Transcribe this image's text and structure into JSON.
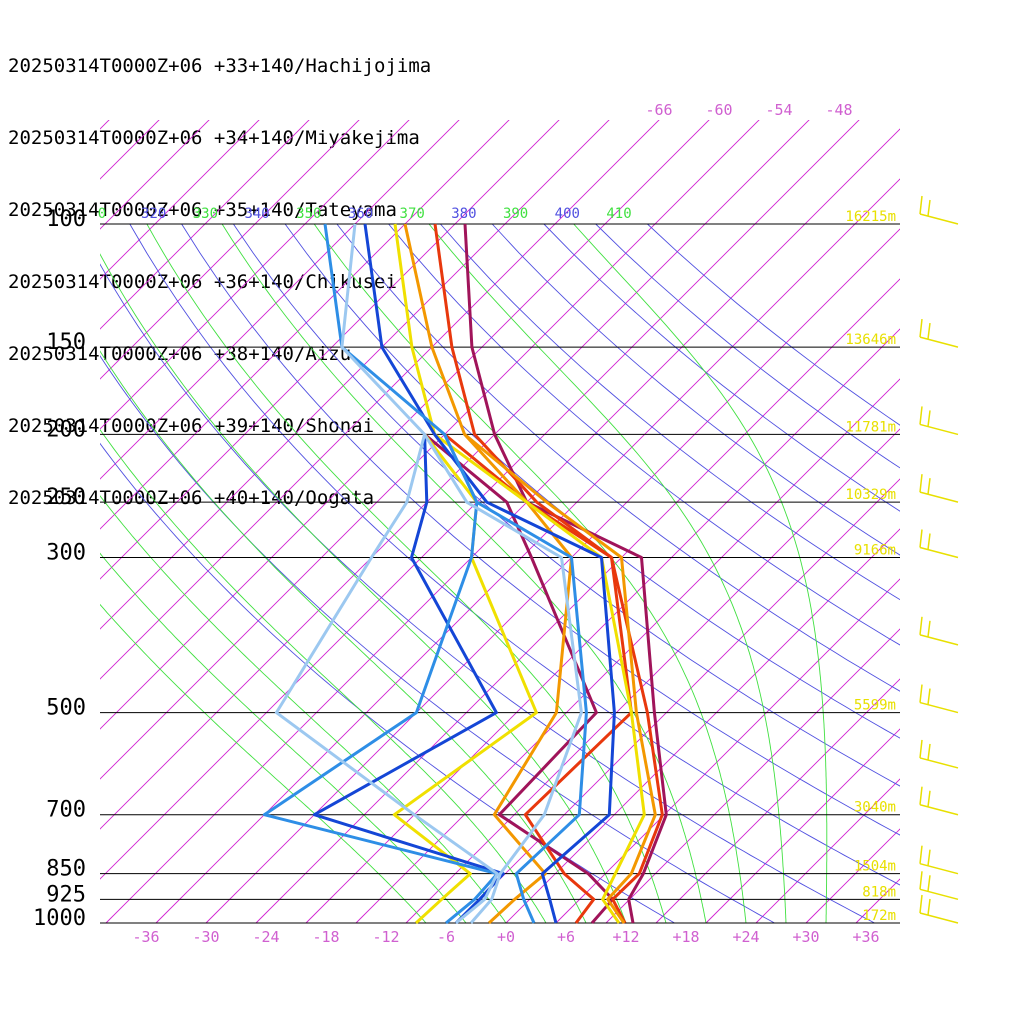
{
  "chart_data": {
    "type": "line",
    "subtype": "skew-T log-P sounding",
    "legend": [
      {
        "label": "20250314T0000Z+06 +33+140/Hachijojima",
        "color": "#a0145a"
      },
      {
        "label": "20250314T0000Z+06 +34+140/Miyakejima",
        "color": "#e8380d"
      },
      {
        "label": "20250314T0000Z+06 +35+140/Tateyama",
        "color": "#f39800"
      },
      {
        "label": "20250314T0000Z+06 +36+140/Chikusei",
        "color": "#f0e000"
      },
      {
        "label": "20250314T0000Z+06 +38+140/Aizu",
        "color": "#1446d6"
      },
      {
        "label": "20250314T0000Z+06 +39+140/Shonai",
        "color": "#2e8ee6"
      },
      {
        "label": "20250314T0000Z+06 +40+140/Oogata",
        "color": "#9cc8f0"
      }
    ],
    "pressure_levels": [
      {
        "label": "100",
        "p": 100,
        "height": "16215m"
      },
      {
        "label": "150",
        "p": 150,
        "height": "13646m"
      },
      {
        "label": "200",
        "p": 200,
        "height": "11781m"
      },
      {
        "label": "250",
        "p": 250,
        "height": "10329m"
      },
      {
        "label": "300",
        "p": 300,
        "height": "9166m"
      },
      {
        "label": "500",
        "p": 500,
        "height": "5599m"
      },
      {
        "label": "700",
        "p": 700,
        "height": "3040m"
      },
      {
        "label": "850",
        "p": 850,
        "height": "1504m"
      },
      {
        "label": "925",
        "p": 925,
        "height": "818m"
      },
      {
        "label": "1000",
        "p": 1000,
        "height": "172m"
      }
    ],
    "temperature_ticks": [
      "-36",
      "-30",
      "-24",
      "-18",
      "-12",
      "-6",
      "+0",
      "+6",
      "+12",
      "+18",
      "+24",
      "+30",
      "+36"
    ],
    "isotherm_labels_top": [
      "-66",
      "-60",
      "-54",
      "-48"
    ],
    "theta_labels": [
      {
        "text": "0",
        "color": "#40e040"
      },
      {
        "text": "320",
        "color": "#5050e0"
      },
      {
        "text": "330",
        "color": "#40e040"
      },
      {
        "text": "340",
        "color": "#5050e0"
      },
      {
        "text": "350",
        "color": "#40e040"
      },
      {
        "text": "360",
        "color": "#5050e0"
      },
      {
        "text": "370",
        "color": "#40e040"
      },
      {
        "text": "380",
        "color": "#5050e0"
      },
      {
        "text": "390",
        "color": "#40e040"
      },
      {
        "text": "400",
        "color": "#5050e0"
      },
      {
        "text": "410",
        "color": "#40e040"
      }
    ],
    "colors": {
      "isobar": "#000000",
      "isotherm": "#d21ed2",
      "dry_adiabat": "#5050e0",
      "moist_adiabat": "#40e040",
      "height_label": "#e8e000",
      "wind_barb": "#e8e000",
      "tick_label": "#d060d0",
      "pressure_label": "#000000"
    },
    "temperature_range": [
      -40,
      40
    ],
    "pressure_range": [
      100,
      1000
    ],
    "series": [
      {
        "name": "20250314T0000Z+06 +33+140/Hachijojima",
        "kind": "temperature",
        "points": [
          [
            1000,
            12.7
          ],
          [
            925,
            9.9
          ],
          [
            850,
            8.8
          ],
          [
            700,
            5.2
          ],
          [
            500,
            -6.2
          ],
          [
            300,
            -23
          ],
          [
            250,
            -40
          ],
          [
            200,
            -50
          ],
          [
            150,
            -61
          ],
          [
            100,
            -74
          ]
        ]
      },
      {
        "name": "20250314T0000Z+06 +33+140/Hachijojima",
        "kind": "dewpoint",
        "points": [
          [
            1000,
            8.6
          ],
          [
            925,
            8.3
          ],
          [
            850,
            3.3
          ],
          [
            700,
            -11.5
          ],
          [
            500,
            -12
          ],
          [
            300,
            -34
          ],
          [
            250,
            -42
          ],
          [
            200,
            -57
          ]
        ]
      },
      {
        "name": "20250314T0000Z+06 +34+140/Miyakejima",
        "kind": "temperature",
        "points": [
          [
            1000,
            11.9
          ],
          [
            925,
            8.3
          ],
          [
            850,
            8.4
          ],
          [
            700,
            4.8
          ],
          [
            500,
            -6.9
          ],
          [
            300,
            -26
          ],
          [
            250,
            -39
          ],
          [
            200,
            -52
          ],
          [
            150,
            -63
          ],
          [
            100,
            -77
          ]
        ]
      },
      {
        "name": "20250314T0000Z+06 +34+140/Miyakejima",
        "kind": "dewpoint",
        "points": [
          [
            1000,
            7.0
          ],
          [
            925,
            6.4
          ],
          [
            850,
            0.9
          ],
          [
            700,
            -8.9
          ],
          [
            500,
            -8.5
          ],
          [
            300,
            -26
          ],
          [
            250,
            -40
          ],
          [
            200,
            -55
          ]
        ]
      },
      {
        "name": "20250314T0000Z+06 +35+140/Tateyama",
        "kind": "temperature",
        "points": [
          [
            1000,
            11.8
          ],
          [
            925,
            7.8
          ],
          [
            850,
            7.6
          ],
          [
            700,
            4.1
          ],
          [
            500,
            -8.0
          ],
          [
            300,
            -25
          ],
          [
            250,
            -38
          ],
          [
            200,
            -53
          ],
          [
            150,
            -65
          ],
          [
            100,
            -80
          ]
        ]
      },
      {
        "name": "20250314T0000Z+06 +35+140/Tateyama",
        "kind": "dewpoint",
        "points": [
          [
            1000,
            -1.7
          ],
          [
            925,
            -1.5
          ],
          [
            850,
            -1.0
          ],
          [
            700,
            -12
          ],
          [
            500,
            -16
          ],
          [
            300,
            -30
          ],
          [
            250,
            -40
          ],
          [
            200,
            -53
          ]
        ]
      },
      {
        "name": "20250314T0000Z+06 +36+140/Chikusei",
        "kind": "temperature",
        "points": [
          [
            1000,
            11.3
          ],
          [
            925,
            7.3
          ],
          [
            850,
            6.0
          ],
          [
            700,
            3.0
          ],
          [
            500,
            -8.5
          ],
          [
            300,
            -27
          ],
          [
            250,
            -40
          ],
          [
            200,
            -56
          ],
          [
            150,
            -67
          ],
          [
            100,
            -81
          ]
        ]
      },
      {
        "name": "20250314T0000Z+06 +36+140/Chikusei",
        "kind": "dewpoint",
        "points": [
          [
            1000,
            -9
          ],
          [
            925,
            -8.8
          ],
          [
            850,
            -8.5
          ],
          [
            700,
            -22
          ],
          [
            500,
            -18
          ],
          [
            300,
            -40
          ],
          [
            250,
            -45
          ],
          [
            200,
            -57
          ]
        ]
      },
      {
        "name": "20250314T0000Z+06 +38+140/Aizu",
        "kind": "temperature",
        "points": [
          [
            1000,
            5.0
          ],
          [
            925,
            2.0
          ],
          [
            850,
            -1.3
          ],
          [
            700,
            -0.5
          ],
          [
            500,
            -10.2
          ],
          [
            300,
            -27
          ],
          [
            250,
            -44
          ],
          [
            200,
            -56
          ],
          [
            150,
            -70
          ],
          [
            100,
            -84
          ]
        ]
      },
      {
        "name": "20250314T0000Z+06 +38+140/Aizu",
        "kind": "dewpoint",
        "points": [
          [
            1000,
            -5
          ],
          [
            925,
            -5
          ],
          [
            850,
            -5.2
          ],
          [
            700,
            -30
          ],
          [
            500,
            -22
          ],
          [
            300,
            -46
          ],
          [
            250,
            -50
          ],
          [
            200,
            -57
          ]
        ]
      },
      {
        "name": "20250314T0000Z+06 +39+140/Shonai",
        "kind": "temperature",
        "points": [
          [
            1000,
            2.8
          ],
          [
            925,
            -0.6
          ],
          [
            850,
            -3.9
          ],
          [
            700,
            -3.5
          ],
          [
            500,
            -13
          ],
          [
            300,
            -30
          ],
          [
            250,
            -45
          ],
          [
            200,
            -55
          ],
          [
            150,
            -74
          ],
          [
            100,
            -88
          ]
        ]
      },
      {
        "name": "20250314T0000Z+06 +39+140/Shonai",
        "kind": "dewpoint",
        "points": [
          [
            1000,
            -6
          ],
          [
            925,
            -5.5
          ],
          [
            850,
            -5.8
          ],
          [
            700,
            -35
          ],
          [
            500,
            -30
          ],
          [
            300,
            -40
          ],
          [
            250,
            -45
          ],
          [
            200,
            -55
          ]
        ]
      },
      {
        "name": "20250314T0000Z+06 +40+140/Oogata",
        "kind": "temperature",
        "points": [
          [
            1000,
            -3.5
          ],
          [
            925,
            -3.8
          ],
          [
            850,
            -5.5
          ],
          [
            700,
            -7.0
          ],
          [
            500,
            -13.5
          ],
          [
            300,
            -31
          ],
          [
            250,
            -46
          ],
          [
            200,
            -57
          ],
          [
            150,
            -74
          ],
          [
            100,
            -85
          ]
        ]
      },
      {
        "name": "20250314T0000Z+06 +40+140/Oogata",
        "kind": "dewpoint",
        "points": [
          [
            1000,
            -5
          ],
          [
            925,
            -4.5
          ],
          [
            850,
            -5.8
          ],
          [
            700,
            -20
          ],
          [
            500,
            -44
          ],
          [
            300,
            -50
          ],
          [
            250,
            -52
          ],
          [
            200,
            -57
          ]
        ]
      }
    ],
    "grid": true
  }
}
